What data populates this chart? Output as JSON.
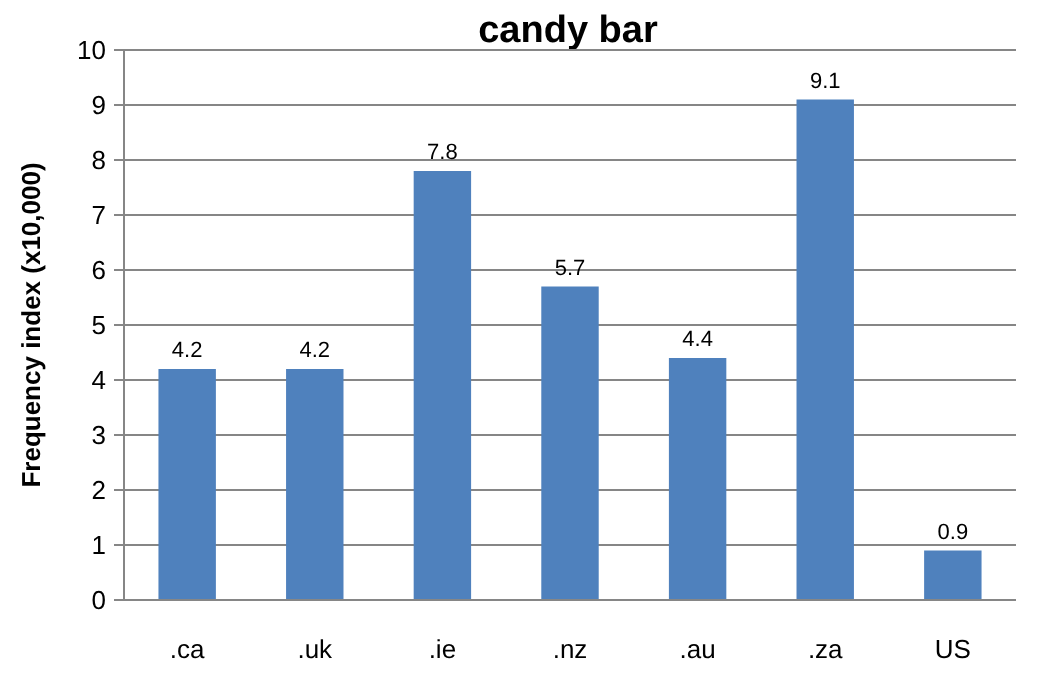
{
  "chart_data": {
    "type": "bar",
    "title": "candy bar",
    "ylabel": "Frequency index (x10,000)",
    "categories": [
      ".ca",
      ".uk",
      ".ie",
      ".nz",
      ".au",
      ".za",
      "US"
    ],
    "values": [
      4.2,
      4.2,
      7.8,
      5.7,
      4.4,
      9.1,
      0.9
    ],
    "color": "#4f81bd",
    "ylim": [
      0,
      10
    ],
    "yticks": [
      0,
      1,
      2,
      3,
      4,
      5,
      6,
      7,
      8,
      9,
      10
    ],
    "grid": "y",
    "data_labels": true
  }
}
